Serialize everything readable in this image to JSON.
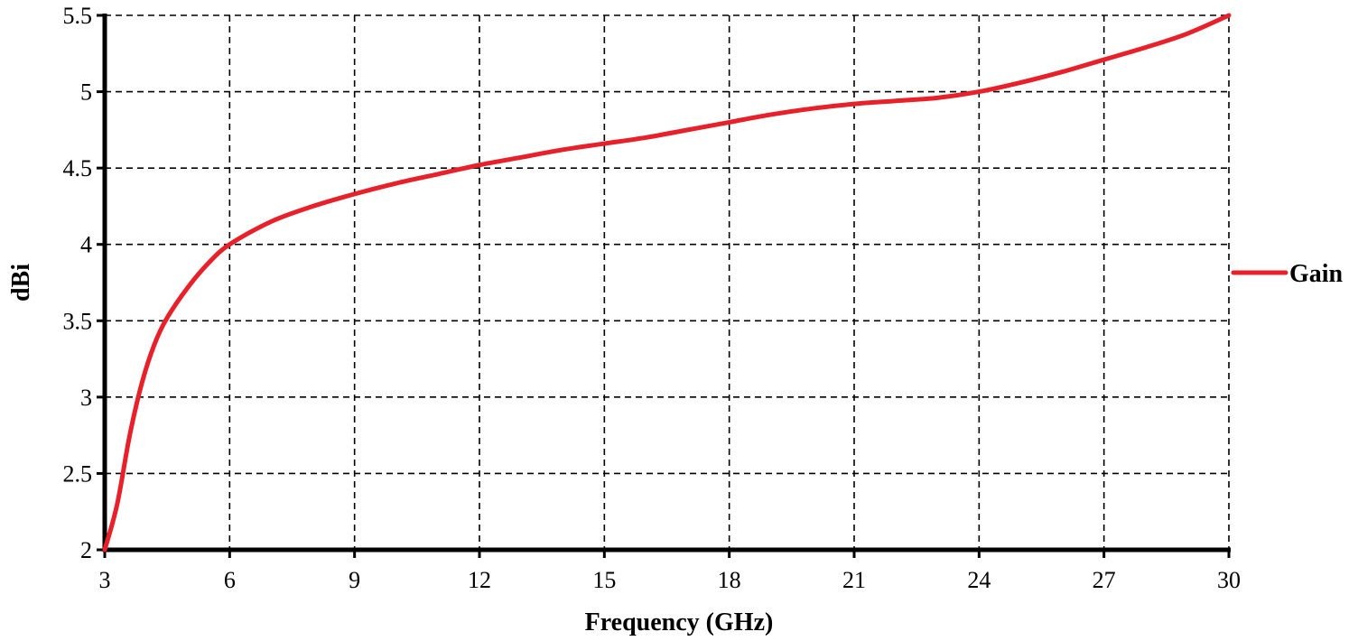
{
  "chart_data": {
    "type": "line",
    "xlabel": "Frequency (GHz)",
    "ylabel": "dBi",
    "xlim": [
      3,
      30
    ],
    "ylim": [
      2,
      5.5
    ],
    "x_ticks": [
      "3",
      "6",
      "9",
      "12",
      "15",
      "18",
      "21",
      "24",
      "27",
      "30"
    ],
    "y_ticks": [
      "2",
      "2.5",
      "3",
      "3.5",
      "4",
      "4.5",
      "5",
      "5.5"
    ],
    "grid": true,
    "legend_position": "right",
    "series": [
      {
        "name": "Gain",
        "color": "#e8202a",
        "x": [
          3,
          3.3,
          3.6,
          3.9,
          4.2,
          4.5,
          5,
          5.5,
          6,
          7,
          8,
          9,
          10,
          11,
          12,
          13,
          14,
          15,
          16,
          17,
          18,
          19,
          20,
          21,
          22,
          23,
          24,
          25,
          26,
          27,
          28,
          29,
          30
        ],
        "y": [
          2.0,
          2.3,
          2.75,
          3.1,
          3.35,
          3.52,
          3.72,
          3.88,
          4.0,
          4.15,
          4.25,
          4.33,
          4.4,
          4.46,
          4.52,
          4.57,
          4.62,
          4.66,
          4.7,
          4.75,
          4.8,
          4.85,
          4.89,
          4.92,
          4.94,
          4.96,
          5.0,
          5.06,
          5.13,
          5.21,
          5.29,
          5.38,
          5.5
        ]
      }
    ]
  }
}
